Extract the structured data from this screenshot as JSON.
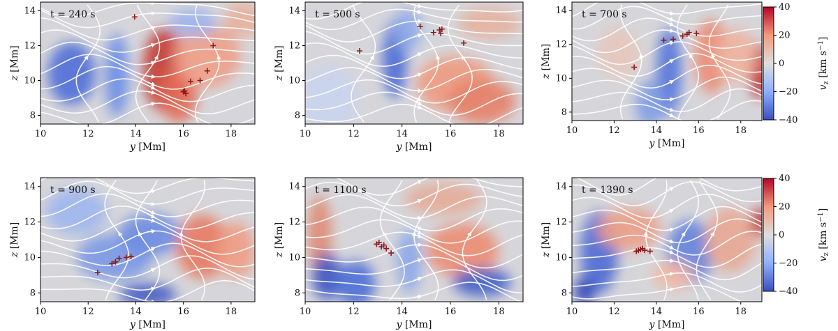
{
  "chart_data": {
    "type": "heatmap",
    "description_panels": 6,
    "xlabel_var": "y",
    "xlabel_unit": "[Mm]",
    "ylabel_var": "z",
    "ylabel_unit": "[Mm]",
    "xlim": [
      10,
      19
    ],
    "ylim": [
      7.5,
      14.5
    ],
    "xticks": [
      "10",
      "12",
      "14",
      "16",
      "18"
    ],
    "yticks": [
      "8",
      "10",
      "12",
      "14"
    ],
    "colorbar": {
      "label_var": "v",
      "label_sub": "z",
      "label_unit": "[km s",
      "label_exp": "−1",
      "label_close": "]",
      "range": [
        -40,
        40
      ],
      "ticks": [
        "40",
        "20",
        "0",
        "−20",
        "−40"
      ],
      "colormap": "coolwarm"
    },
    "marker_color": "#8b1a1a",
    "panels": [
      {
        "label": "t = 240 s",
        "time_s": 240,
        "markers": [
          [
            13.95,
            13.65
          ],
          [
            16.0,
            9.35
          ],
          [
            16.1,
            9.25
          ],
          [
            16.05,
            9.4
          ],
          [
            16.3,
            9.95
          ],
          [
            16.7,
            10.0
          ],
          [
            17.0,
            10.55
          ],
          [
            17.25,
            12.0
          ]
        ]
      },
      {
        "label": "t = 500 s",
        "time_s": 500,
        "markers": [
          [
            12.25,
            11.7
          ],
          [
            14.75,
            13.1
          ],
          [
            15.3,
            12.75
          ],
          [
            15.55,
            12.9
          ],
          [
            15.6,
            12.7
          ],
          [
            15.65,
            12.95
          ],
          [
            16.55,
            12.15
          ]
        ]
      },
      {
        "label": "t = 700 s",
        "time_s": 700,
        "markers": [
          [
            12.95,
            10.65
          ],
          [
            14.35,
            12.25
          ],
          [
            14.8,
            12.3
          ],
          [
            15.25,
            12.5
          ],
          [
            15.45,
            12.6
          ],
          [
            15.55,
            12.7
          ],
          [
            15.9,
            12.65
          ]
        ]
      },
      {
        "label": "t = 900 s",
        "time_s": 900,
        "markers": [
          [
            12.4,
            9.15
          ],
          [
            13.0,
            9.65
          ],
          [
            13.15,
            9.75
          ],
          [
            13.3,
            9.95
          ],
          [
            13.6,
            10.0
          ],
          [
            13.8,
            10.05
          ]
        ]
      },
      {
        "label": "t = 1100 s",
        "time_s": 1100,
        "markers": [
          [
            12.95,
            10.75
          ],
          [
            13.05,
            10.85
          ],
          [
            13.15,
            10.6
          ],
          [
            13.25,
            10.7
          ],
          [
            13.35,
            10.5
          ],
          [
            13.55,
            10.25
          ]
        ]
      },
      {
        "label": "t = 1390 s",
        "time_s": 1390,
        "markers": [
          [
            13.05,
            10.35
          ],
          [
            13.15,
            10.4
          ],
          [
            13.25,
            10.45
          ],
          [
            13.35,
            10.5
          ],
          [
            13.45,
            10.4
          ],
          [
            13.7,
            10.35
          ]
        ]
      }
    ]
  }
}
